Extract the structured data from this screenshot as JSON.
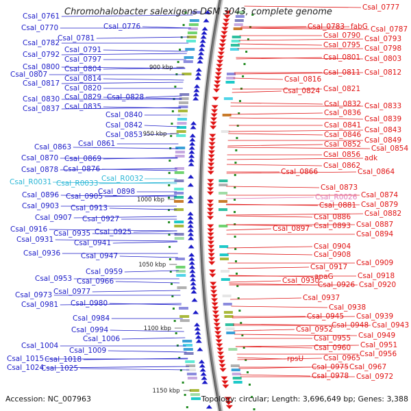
{
  "title": "Chromohalobacter salexigens DSM 3043, complete genome",
  "footer": {
    "accession": "Accession: NC_007963",
    "summary": "Topology: circular; Length: 3,696,649 bp; Genes: 3,388"
  },
  "colors": {
    "left_gene": "#1a1ac8",
    "rna": "#29b6d6",
    "right_gene": "#e01010",
    "pink_rna": "#e07ab8"
  },
  "ruler_ticks": [
    "900 kbp",
    "950 kbp",
    "1000 kbp",
    "1050 kbp",
    "1100 kbp",
    "1150 kbp"
  ],
  "left_labels": [
    {
      "t": "Csal_0761",
      "c": "left"
    },
    {
      "t": "Csal_0770",
      "c": "left"
    },
    {
      "t": "Csal_0776",
      "c": "left"
    },
    {
      "t": "Csal_0781",
      "c": "left"
    },
    {
      "t": "Csal_0782",
      "c": "left"
    },
    {
      "t": "Csal_0791",
      "c": "left"
    },
    {
      "t": "Csal_0792",
      "c": "left"
    },
    {
      "t": "Csal_0797",
      "c": "left"
    },
    {
      "t": "Csal_0800",
      "c": "left"
    },
    {
      "t": "Csal_0804",
      "c": "left"
    },
    {
      "t": "Csal_0807",
      "c": "left"
    },
    {
      "t": "Csal_0814",
      "c": "left"
    },
    {
      "t": "Csal_0817",
      "c": "left"
    },
    {
      "t": "Csal_0820",
      "c": "left"
    },
    {
      "t": "Csal_0829",
      "c": "left"
    },
    {
      "t": "Csal_0828",
      "c": "left"
    },
    {
      "t": "Csal_0830",
      "c": "left"
    },
    {
      "t": "Csal_0835",
      "c": "left"
    },
    {
      "t": "Csal_0837",
      "c": "left"
    },
    {
      "t": "Csal_0840",
      "c": "left"
    },
    {
      "t": "Csal_0842",
      "c": "left"
    },
    {
      "t": "Csal_0853",
      "c": "left"
    },
    {
      "t": "Csal_0861",
      "c": "left"
    },
    {
      "t": "Csal_0863",
      "c": "left"
    },
    {
      "t": "Csal_0869",
      "c": "left"
    },
    {
      "t": "Csal_0870",
      "c": "left"
    },
    {
      "t": "Csal_0876",
      "c": "left"
    },
    {
      "t": "Csal_0878",
      "c": "left"
    },
    {
      "t": "Csal_R0032",
      "c": "rna"
    },
    {
      "t": "Csal_R0031",
      "c": "rna"
    },
    {
      "t": "Csal_R0033",
      "c": "rna"
    },
    {
      "t": "Csal_0898",
      "c": "left"
    },
    {
      "t": "Csal_0896",
      "c": "left"
    },
    {
      "t": "Csal_0905",
      "c": "left"
    },
    {
      "t": "Csal_0903",
      "c": "left"
    },
    {
      "t": "Csal_0913",
      "c": "left"
    },
    {
      "t": "Csal_0907",
      "c": "left"
    },
    {
      "t": "Csal_0927",
      "c": "left"
    },
    {
      "t": "Csal_0916",
      "c": "left"
    },
    {
      "t": "Csal_0925",
      "c": "left"
    },
    {
      "t": "Csal_0935",
      "c": "left"
    },
    {
      "t": "Csal_0931",
      "c": "left"
    },
    {
      "t": "Csal_0941",
      "c": "left"
    },
    {
      "t": "Csal_0936",
      "c": "left"
    },
    {
      "t": "Csal_0947",
      "c": "left"
    },
    {
      "t": "Csal_0959",
      "c": "left"
    },
    {
      "t": "Csal_0953",
      "c": "left"
    },
    {
      "t": "Csal_0966",
      "c": "left"
    },
    {
      "t": "Csal_0977",
      "c": "left"
    },
    {
      "t": "Csal_0973",
      "c": "left"
    },
    {
      "t": "Csal_0980",
      "c": "left"
    },
    {
      "t": "Csal_0981",
      "c": "left"
    },
    {
      "t": "Csal_0984",
      "c": "left"
    },
    {
      "t": "Csal_0994",
      "c": "left"
    },
    {
      "t": "Csal_1006",
      "c": "left"
    },
    {
      "t": "Csal_1004",
      "c": "left"
    },
    {
      "t": "Csal_1009",
      "c": "left"
    },
    {
      "t": "Csal_1018",
      "c": "left"
    },
    {
      "t": "Csal_1015",
      "c": "left"
    },
    {
      "t": "Csal_1025",
      "c": "left"
    },
    {
      "t": "Csal_1024",
      "c": "left"
    }
  ],
  "right_labels": [
    {
      "t": "Csal_0777",
      "c": "right"
    },
    {
      "t": "Csal_0783",
      "c": "right"
    },
    {
      "t": "fabG",
      "c": "right"
    },
    {
      "t": "Csal_0787",
      "c": "right"
    },
    {
      "t": "Csal_0790",
      "c": "right"
    },
    {
      "t": "Csal_0793",
      "c": "right"
    },
    {
      "t": "Csal_0795",
      "c": "right"
    },
    {
      "t": "Csal_0798",
      "c": "right"
    },
    {
      "t": "Csal_0801",
      "c": "right"
    },
    {
      "t": "Csal_0803",
      "c": "right"
    },
    {
      "t": "Csal_0811",
      "c": "right"
    },
    {
      "t": "Csal_0812",
      "c": "right"
    },
    {
      "t": "Csal_0816",
      "c": "right"
    },
    {
      "t": "Csal_0821",
      "c": "right"
    },
    {
      "t": "Csal_0824",
      "c": "right"
    },
    {
      "t": "Csal_0832",
      "c": "right"
    },
    {
      "t": "Csal_0833",
      "c": "right"
    },
    {
      "t": "Csal_0836",
      "c": "right"
    },
    {
      "t": "Csal_0839",
      "c": "right"
    },
    {
      "t": "Csal_0841",
      "c": "right"
    },
    {
      "t": "Csal_0843",
      "c": "right"
    },
    {
      "t": "Csal_0846",
      "c": "right"
    },
    {
      "t": "Csal_0849",
      "c": "right"
    },
    {
      "t": "Csal_0852",
      "c": "right"
    },
    {
      "t": "Csal_0854",
      "c": "right"
    },
    {
      "t": "Csal_0856",
      "c": "right"
    },
    {
      "t": "adk",
      "c": "right"
    },
    {
      "t": "Csal_0862",
      "c": "right"
    },
    {
      "t": "Csal_0866",
      "c": "right"
    },
    {
      "t": "Csal_0864",
      "c": "right"
    },
    {
      "t": "Csal_0873",
      "c": "right"
    },
    {
      "t": "Csal_0874",
      "c": "right"
    },
    {
      "t": "Csal_R0026",
      "c": "pink"
    },
    {
      "t": "Csal_0881",
      "c": "right"
    },
    {
      "t": "Csal_0879",
      "c": "right"
    },
    {
      "t": "Csal_0882",
      "c": "right"
    },
    {
      "t": "Csal_0886",
      "c": "right"
    },
    {
      "t": "Csal_0887",
      "c": "right"
    },
    {
      "t": "Csal_0897",
      "c": "right"
    },
    {
      "t": "Csal_0893",
      "c": "right"
    },
    {
      "t": "Csal_0894",
      "c": "right"
    },
    {
      "t": "Csal_0904",
      "c": "right"
    },
    {
      "t": "Csal_0908",
      "c": "right"
    },
    {
      "t": "Csal_0909",
      "c": "right"
    },
    {
      "t": "Csal_0917",
      "c": "right"
    },
    {
      "t": "apaG",
      "c": "right"
    },
    {
      "t": "Csal_0918",
      "c": "right"
    },
    {
      "t": "Csal_0930",
      "c": "right"
    },
    {
      "t": "Csal_0926",
      "c": "right"
    },
    {
      "t": "Csal_0920",
      "c": "right"
    },
    {
      "t": "Csal_0937",
      "c": "right"
    },
    {
      "t": "Csal_0938",
      "c": "right"
    },
    {
      "t": "Csal_0945",
      "c": "right"
    },
    {
      "t": "Csal_0939",
      "c": "right"
    },
    {
      "t": "Csal_0948",
      "c": "right"
    },
    {
      "t": "Csal_0943",
      "c": "right"
    },
    {
      "t": "Csal_0952",
      "c": "right"
    },
    {
      "t": "Csal_0949",
      "c": "right"
    },
    {
      "t": "Csal_0955",
      "c": "right"
    },
    {
      "t": "Csal_0951",
      "c": "right"
    },
    {
      "t": "Csal_0960",
      "c": "right"
    },
    {
      "t": "Csal_0956",
      "c": "right"
    },
    {
      "t": "Csal_0965",
      "c": "right"
    },
    {
      "t": "rpsU",
      "c": "right"
    },
    {
      "t": "Csal_0967",
      "c": "right"
    },
    {
      "t": "Csal_0975",
      "c": "right"
    },
    {
      "t": "Csal_0978",
      "c": "right"
    },
    {
      "t": "Csal_0972",
      "c": "right"
    }
  ]
}
